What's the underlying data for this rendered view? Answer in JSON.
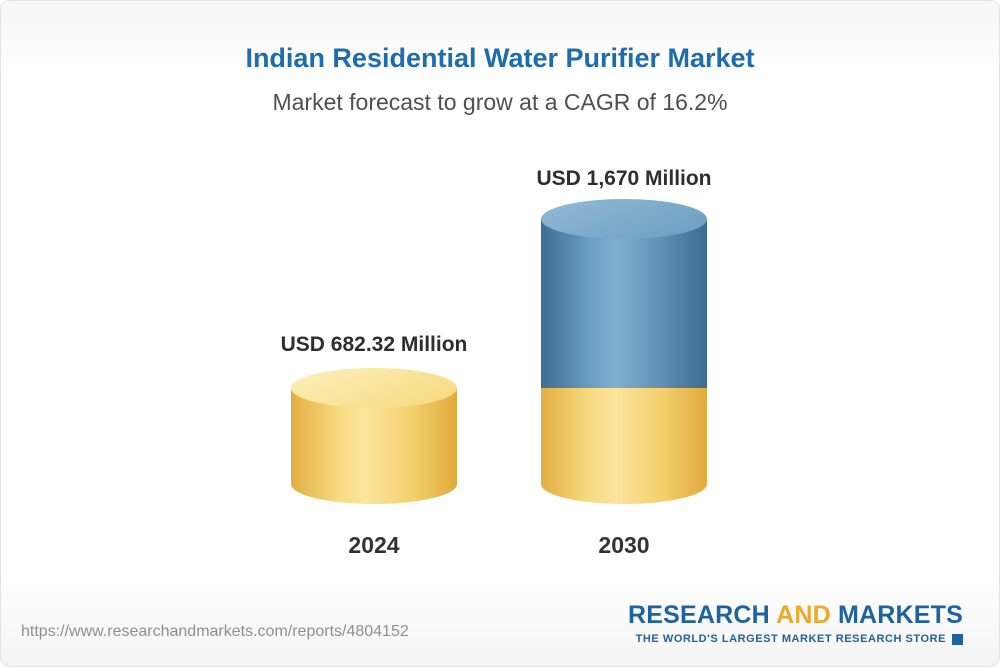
{
  "header": {
    "title": "Indian Residential Water Purifier Market",
    "subtitle": "Market forecast to grow at a CAGR of 16.2%"
  },
  "chart_data": {
    "type": "bar",
    "title": "Indian Residential Water Purifier Market",
    "subtitle": "Market forecast to grow at a CAGR of 16.2%",
    "cagr": "16.2%",
    "unit": "USD Million",
    "categories": [
      "2024",
      "2030"
    ],
    "values": [
      682.32,
      1670
    ],
    "value_labels": [
      "USD 682.32 Million",
      "USD 1,670 Million"
    ],
    "ylim": [
      0,
      1670
    ],
    "legend": "none",
    "grid": false,
    "colors": {
      "bar_2024": "#f3cf6b",
      "bar_2030_top_segment": "#5f8eb2",
      "bar_2030_base_segment": "#f3cf6b",
      "title_blue": "#1c6cae"
    }
  },
  "footer": {
    "url": "https://www.researchandmarkets.com/reports/4804152",
    "logo": {
      "research": "RESEARCH",
      "and": "AND",
      "markets": "MARKETS",
      "tagline": "THE WORLD'S LARGEST MARKET RESEARCH STORE"
    }
  }
}
